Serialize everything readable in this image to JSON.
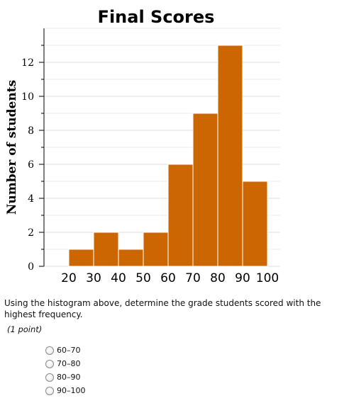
{
  "chart_data": {
    "type": "bar",
    "title": "Final Scores",
    "ylabel": "Number of students",
    "xlabel": "",
    "bin_edges": [
      20,
      30,
      40,
      50,
      60,
      70,
      80,
      90,
      100
    ],
    "x_tick_labels": [
      "20",
      "30",
      "40",
      "50",
      "60",
      "70",
      "80",
      "90",
      "100"
    ],
    "values": [
      1,
      2,
      1,
      2,
      6,
      9,
      13,
      5
    ],
    "ylim": [
      0,
      14
    ],
    "y_ticks": [
      0,
      2,
      4,
      6,
      8,
      10,
      12
    ],
    "bar_color": "#cc6600",
    "grid": true
  },
  "question": {
    "text": "Using the histogram above, determine the grade students scored with the highest frequency.",
    "points": "(1 point)",
    "options": [
      "60–70",
      "70–80",
      "80–90",
      "90–100"
    ]
  }
}
